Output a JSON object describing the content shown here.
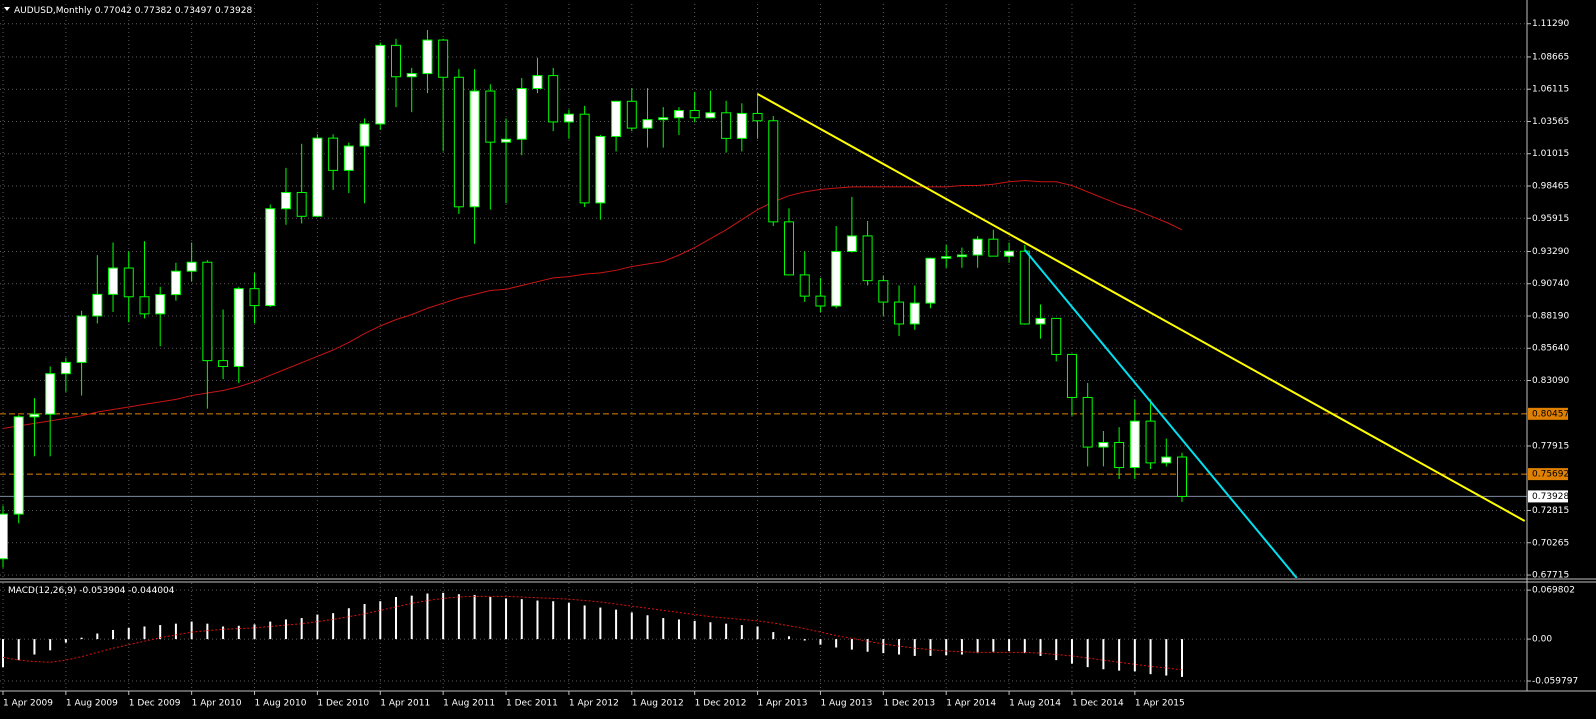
{
  "chart_data": [
    {
      "type": "candlestick",
      "title": "AUDUSD,Monthly",
      "categories": [
        "1 Apr 2009",
        null,
        null,
        null,
        "1 Aug 2009",
        null,
        null,
        null,
        "1 Dec 2009",
        null,
        null,
        null,
        "1 Apr 2010",
        null,
        null,
        null,
        "1 Aug 2010",
        null,
        null,
        null,
        "1 Dec 2010",
        null,
        null,
        null,
        "1 Apr 2011",
        null,
        null,
        null,
        "1 Aug 2011",
        null,
        null,
        null,
        "1 Dec 2011",
        null,
        null,
        null,
        "1 Apr 2012",
        null,
        null,
        null,
        "1 Aug 2012",
        null,
        null,
        null,
        "1 Dec 2012",
        null,
        null,
        null,
        "1 Apr 2013",
        null,
        null,
        null,
        "1 Aug 2013",
        null,
        null,
        null,
        "1 Dec 2013",
        null,
        null,
        null,
        "1 Apr 2014",
        null,
        null,
        null,
        "1 Aug 2014",
        null,
        null,
        null,
        "1 Dec 2014",
        null,
        null,
        null,
        "1 Apr 2015",
        null,
        null,
        null
      ],
      "open": [
        0.69,
        0.7253,
        0.8022,
        0.8043,
        0.8363,
        0.8452,
        0.8819,
        0.899,
        0.9198,
        0.8971,
        0.8836,
        0.8988,
        0.9173,
        0.9244,
        0.8466,
        0.842,
        0.9035,
        0.8901,
        0.9667,
        0.9795,
        0.9607,
        1.0225,
        0.997,
        1.0162,
        1.0337,
        1.0958,
        1.071,
        1.0735,
        1.1,
        1.0706,
        0.9682,
        1.0597,
        1.0193,
        1.0216,
        1.0617,
        1.0719,
        1.0353,
        1.0414,
        0.9713,
        1.0238,
        1.0516,
        1.0304,
        1.0371,
        1.0386,
        1.0443,
        1.0386,
        1.0425,
        1.0223,
        1.042,
        1.0362,
        0.9563,
        0.9144,
        0.8976,
        0.8898,
        0.9329,
        0.9452,
        0.9098,
        0.8929,
        0.8756,
        0.8921,
        0.9275,
        0.9288,
        0.9301,
        0.9426,
        0.9292,
        0.9331,
        0.8756,
        0.88,
        0.8515,
        0.8175,
        0.7783,
        0.7819,
        0.7621,
        0.7988,
        0.7658,
        0.77042
      ],
      "high": [
        0.732,
        0.8035,
        0.817,
        0.842,
        0.849,
        0.886,
        0.93,
        0.94,
        0.933,
        0.941,
        0.905,
        0.924,
        0.94,
        0.926,
        0.887,
        0.905,
        0.916,
        0.97,
        0.999,
        1.018,
        1.0255,
        1.0255,
        1.019,
        1.038,
        1.098,
        1.101,
        1.078,
        1.108,
        1.101,
        1.077,
        1.077,
        1.065,
        1.038,
        1.07,
        1.086,
        1.078,
        1.045,
        1.048,
        1.025,
        1.052,
        1.062,
        1.062,
        1.047,
        1.047,
        1.059,
        1.06,
        1.052,
        1.05,
        1.058,
        1.04,
        0.967,
        0.933,
        0.912,
        0.953,
        0.976,
        0.957,
        0.914,
        0.906,
        0.906,
        0.928,
        0.938,
        0.936,
        0.945,
        0.95,
        0.94,
        0.938,
        0.891,
        0.88,
        0.852,
        0.829,
        0.791,
        0.794,
        0.816,
        0.816,
        0.785,
        0.77382
      ],
      "low": [
        0.683,
        0.718,
        0.771,
        0.771,
        0.822,
        0.819,
        0.876,
        0.885,
        0.877,
        0.88,
        0.858,
        0.894,
        0.909,
        0.8087,
        0.832,
        0.829,
        0.876,
        0.889,
        0.954,
        0.955,
        0.96,
        0.9815,
        0.979,
        0.971,
        1.029,
        1.047,
        1.043,
        1.058,
        1.012,
        0.9625,
        0.939,
        0.966,
        0.971,
        1.009,
        1.058,
        1.028,
        1.022,
        0.968,
        0.958,
        1.012,
        1.028,
        1.015,
        1.015,
        1.025,
        1.035,
        1.038,
        1.011,
        1.012,
        1.022,
        0.953,
        0.914,
        0.893,
        0.885,
        0.888,
        0.932,
        0.906,
        0.882,
        0.866,
        0.871,
        0.888,
        0.92,
        0.92,
        0.92,
        0.929,
        0.924,
        0.875,
        0.864,
        0.846,
        0.803,
        0.763,
        0.763,
        0.753,
        0.753,
        0.761,
        0.763,
        0.73497
      ],
      "close": [
        0.7253,
        0.8022,
        0.8043,
        0.8363,
        0.8452,
        0.8819,
        0.899,
        0.9198,
        0.8971,
        0.8836,
        0.8988,
        0.9173,
        0.9244,
        0.8466,
        0.842,
        0.9035,
        0.8901,
        0.9667,
        0.9795,
        0.9607,
        1.0225,
        0.997,
        1.0162,
        1.0337,
        1.0958,
        1.071,
        1.0735,
        1.1,
        1.0706,
        0.9682,
        1.0597,
        1.0193,
        1.0216,
        1.0617,
        1.0719,
        1.0353,
        1.0414,
        0.9713,
        1.0238,
        1.0516,
        1.0304,
        1.0371,
        1.0386,
        1.0443,
        1.0386,
        1.0425,
        1.0223,
        1.042,
        1.0362,
        0.9563,
        0.9144,
        0.8976,
        0.8898,
        0.9329,
        0.9452,
        0.9098,
        0.8929,
        0.8756,
        0.8921,
        0.9275,
        0.9288,
        0.9301,
        0.9426,
        0.9292,
        0.9331,
        0.8756,
        0.88,
        0.8515,
        0.8175,
        0.7783,
        0.7819,
        0.7621,
        0.7988,
        0.7658,
        0.7704,
        0.73928
      ],
      "up_color": "#ffffff",
      "down_color": "#000000",
      "wick_color": "#00ff00",
      "ma": {
        "color": "#c81414",
        "values": [
          0.793,
          0.795,
          0.797,
          0.799,
          0.801,
          0.803,
          0.806,
          0.808,
          0.81,
          0.812,
          0.814,
          0.816,
          0.819,
          0.821,
          0.823,
          0.826,
          0.83,
          0.835,
          0.84,
          0.845,
          0.85,
          0.855,
          0.861,
          0.868,
          0.874,
          0.879,
          0.883,
          0.888,
          0.892,
          0.896,
          0.899,
          0.902,
          0.903,
          0.906,
          0.909,
          0.912,
          0.913,
          0.915,
          0.916,
          0.918,
          0.921,
          0.923,
          0.925,
          0.93,
          0.936,
          0.943,
          0.95,
          0.958,
          0.966,
          0.972,
          0.977,
          0.98,
          0.982,
          0.983,
          0.984,
          0.984,
          0.984,
          0.984,
          0.984,
          0.984,
          0.984,
          0.985,
          0.985,
          0.986,
          0.988,
          0.989,
          0.988,
          0.988,
          0.985,
          0.98,
          0.975,
          0.97,
          0.966,
          0.961,
          0.956,
          0.95
        ]
      },
      "hlines": [
        {
          "value": 0.80457,
          "color": "#e08000"
        },
        {
          "value": 0.75692,
          "color": "#e08000"
        }
      ],
      "price_line_color": "#7d8ca0",
      "trendlines": [
        {
          "color": "#ffff00",
          "x": [
            48.0,
            96.8
          ],
          "y": [
            1.0574,
            0.7199
          ]
        },
        {
          "color": "#00e0f0",
          "x": [
            65.0,
            82.3
          ],
          "y": [
            0.9341,
            0.6748
          ]
        }
      ],
      "ylim": [
        0.6748,
        1.1285
      ],
      "yticks": [
        {
          "value": 1.1129,
          "label": "1.11290"
        },
        1.08665,
        1.06115,
        1.03565,
        1.01015,
        0.98465,
        0.95915,
        {
          "value": 0.9329,
          "label": "0.93290"
        },
        {
          "value": 0.9074,
          "label": "0.90740"
        },
        {
          "value": 0.8819,
          "label": "0.88190"
        },
        {
          "value": 0.8564,
          "label": "0.85640"
        },
        {
          "value": 0.8309,
          "label": "0.83090"
        },
        0.77915,
        0.72815,
        0.70265,
        0.67715
      ],
      "grid": true
    },
    {
      "type": "macd",
      "title": "MACD(12,26,9)",
      "histogram": {
        "color": "#ffffff",
        "values": [
          -0.04,
          -0.03,
          -0.022,
          -0.016,
          -0.005,
          0.002,
          0.008,
          0.013,
          0.016,
          0.018,
          0.02,
          0.022,
          0.025,
          0.022,
          0.018,
          0.019,
          0.021,
          0.025,
          0.028,
          0.03,
          0.035,
          0.037,
          0.044,
          0.05,
          0.054,
          0.06,
          0.062,
          0.065,
          0.066,
          0.064,
          0.063,
          0.06,
          0.058,
          0.057,
          0.055,
          0.054,
          0.052,
          0.048,
          0.045,
          0.042,
          0.038,
          0.034,
          0.03,
          0.028,
          0.026,
          0.024,
          0.022,
          0.02,
          0.018,
          0.01,
          0.004,
          -0.002,
          -0.008,
          -0.012,
          -0.015,
          -0.018,
          -0.02,
          -0.022,
          -0.024,
          -0.024,
          -0.023,
          -0.022,
          -0.02,
          -0.018,
          -0.017,
          -0.02,
          -0.024,
          -0.03,
          -0.035,
          -0.04,
          -0.043,
          -0.045,
          -0.046,
          -0.05,
          -0.052,
          -0.053904
        ]
      },
      "signal": {
        "color": "#e01010",
        "values": [
          -0.026,
          -0.03,
          -0.032,
          -0.033,
          -0.03,
          -0.025,
          -0.019,
          -0.013,
          -0.008,
          -0.003,
          0.002,
          0.006,
          0.01,
          0.012,
          0.014,
          0.015,
          0.016,
          0.018,
          0.02,
          0.022,
          0.025,
          0.028,
          0.032,
          0.036,
          0.041,
          0.046,
          0.051,
          0.055,
          0.058,
          0.06,
          0.061,
          0.061,
          0.061,
          0.06,
          0.059,
          0.058,
          0.057,
          0.055,
          0.053,
          0.05,
          0.047,
          0.044,
          0.041,
          0.038,
          0.035,
          0.032,
          0.03,
          0.028,
          0.026,
          0.023,
          0.019,
          0.015,
          0.01,
          0.005,
          0.001,
          -0.003,
          -0.007,
          -0.01,
          -0.013,
          -0.015,
          -0.017,
          -0.018,
          -0.019,
          -0.019,
          -0.019,
          -0.019,
          -0.02,
          -0.022,
          -0.024,
          -0.027,
          -0.03,
          -0.033,
          -0.036,
          -0.039,
          -0.041,
          -0.044004
        ]
      },
      "ylim": [
        -0.0726,
        0.08
      ],
      "yticks": [
        0.069802,
        {
          "value": 0,
          "label": "0.00"
        },
        -0.059797
      ],
      "grid": true
    }
  ]
}
